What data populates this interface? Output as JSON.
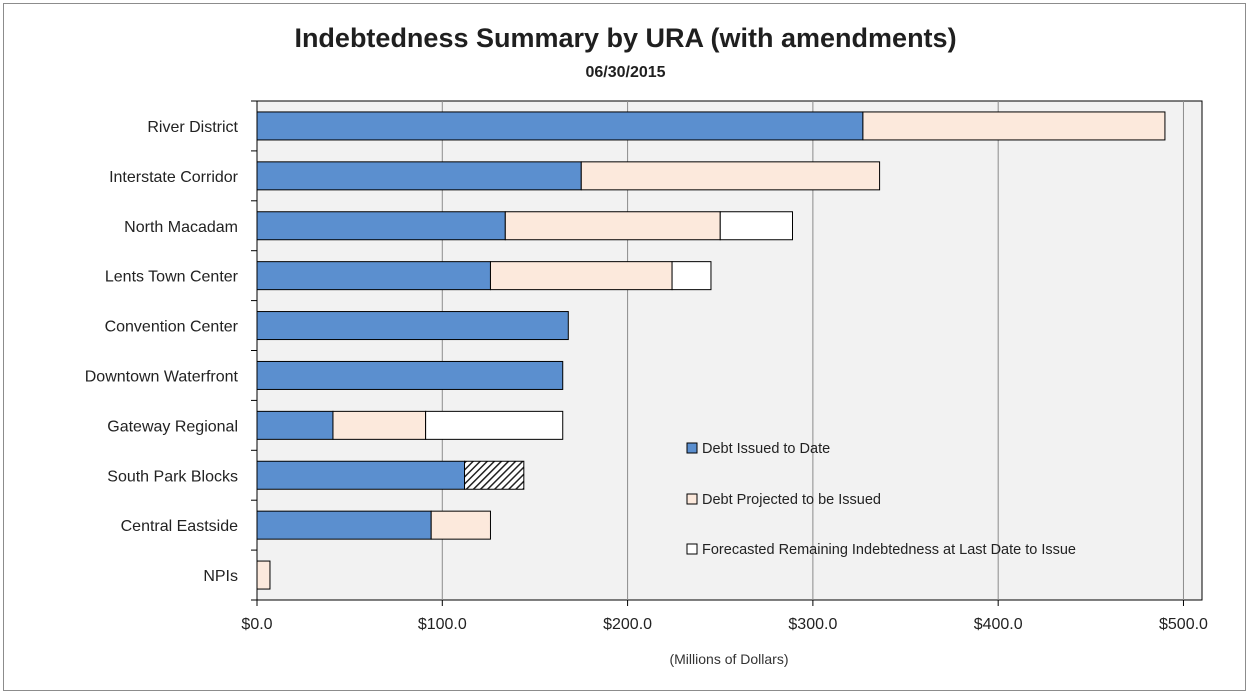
{
  "chart_data": {
    "type": "bar",
    "orientation": "horizontal",
    "stacked": true,
    "title": "Indebtedness Summary by URA (with amendments)",
    "subtitle": "06/30/2015",
    "xlabel": "(Millions of Dollars)",
    "ylabel": "",
    "xlim": [
      0,
      500
    ],
    "x_ticks": [
      0,
      100,
      200,
      300,
      400,
      500
    ],
    "x_tick_labels": [
      "$0.0",
      "$100.0",
      "$200.0",
      "$300.0",
      "$400.0",
      "$500.0"
    ],
    "grid": true,
    "legend_position": "lower-right inside plot",
    "categories": [
      "River District",
      "Interstate Corridor",
      "North Macadam",
      "Lents Town Center",
      "Convention Center",
      "Downtown Waterfront",
      "Gateway Regional",
      "South Park Blocks",
      "Central Eastside",
      "NPIs"
    ],
    "series": [
      {
        "name": "Debt Issued to Date",
        "color": "#5b8fcf",
        "values": [
          327,
          175,
          134,
          126,
          168,
          165,
          41,
          112,
          94,
          0
        ]
      },
      {
        "name": "Debt Projected to be Issued",
        "color": "#fce9dc",
        "values": [
          163,
          161,
          116,
          98,
          0,
          0,
          50,
          0,
          32,
          7
        ]
      },
      {
        "name": "Forecasted Remaining Indebtedness at Last Date to Issue",
        "color": "#ffffff",
        "values": [
          0,
          0,
          39,
          21,
          0,
          0,
          74,
          0,
          0,
          0
        ]
      }
    ],
    "hatched_segments": [
      {
        "category": "South Park Blocks",
        "value": 32
      }
    ]
  }
}
